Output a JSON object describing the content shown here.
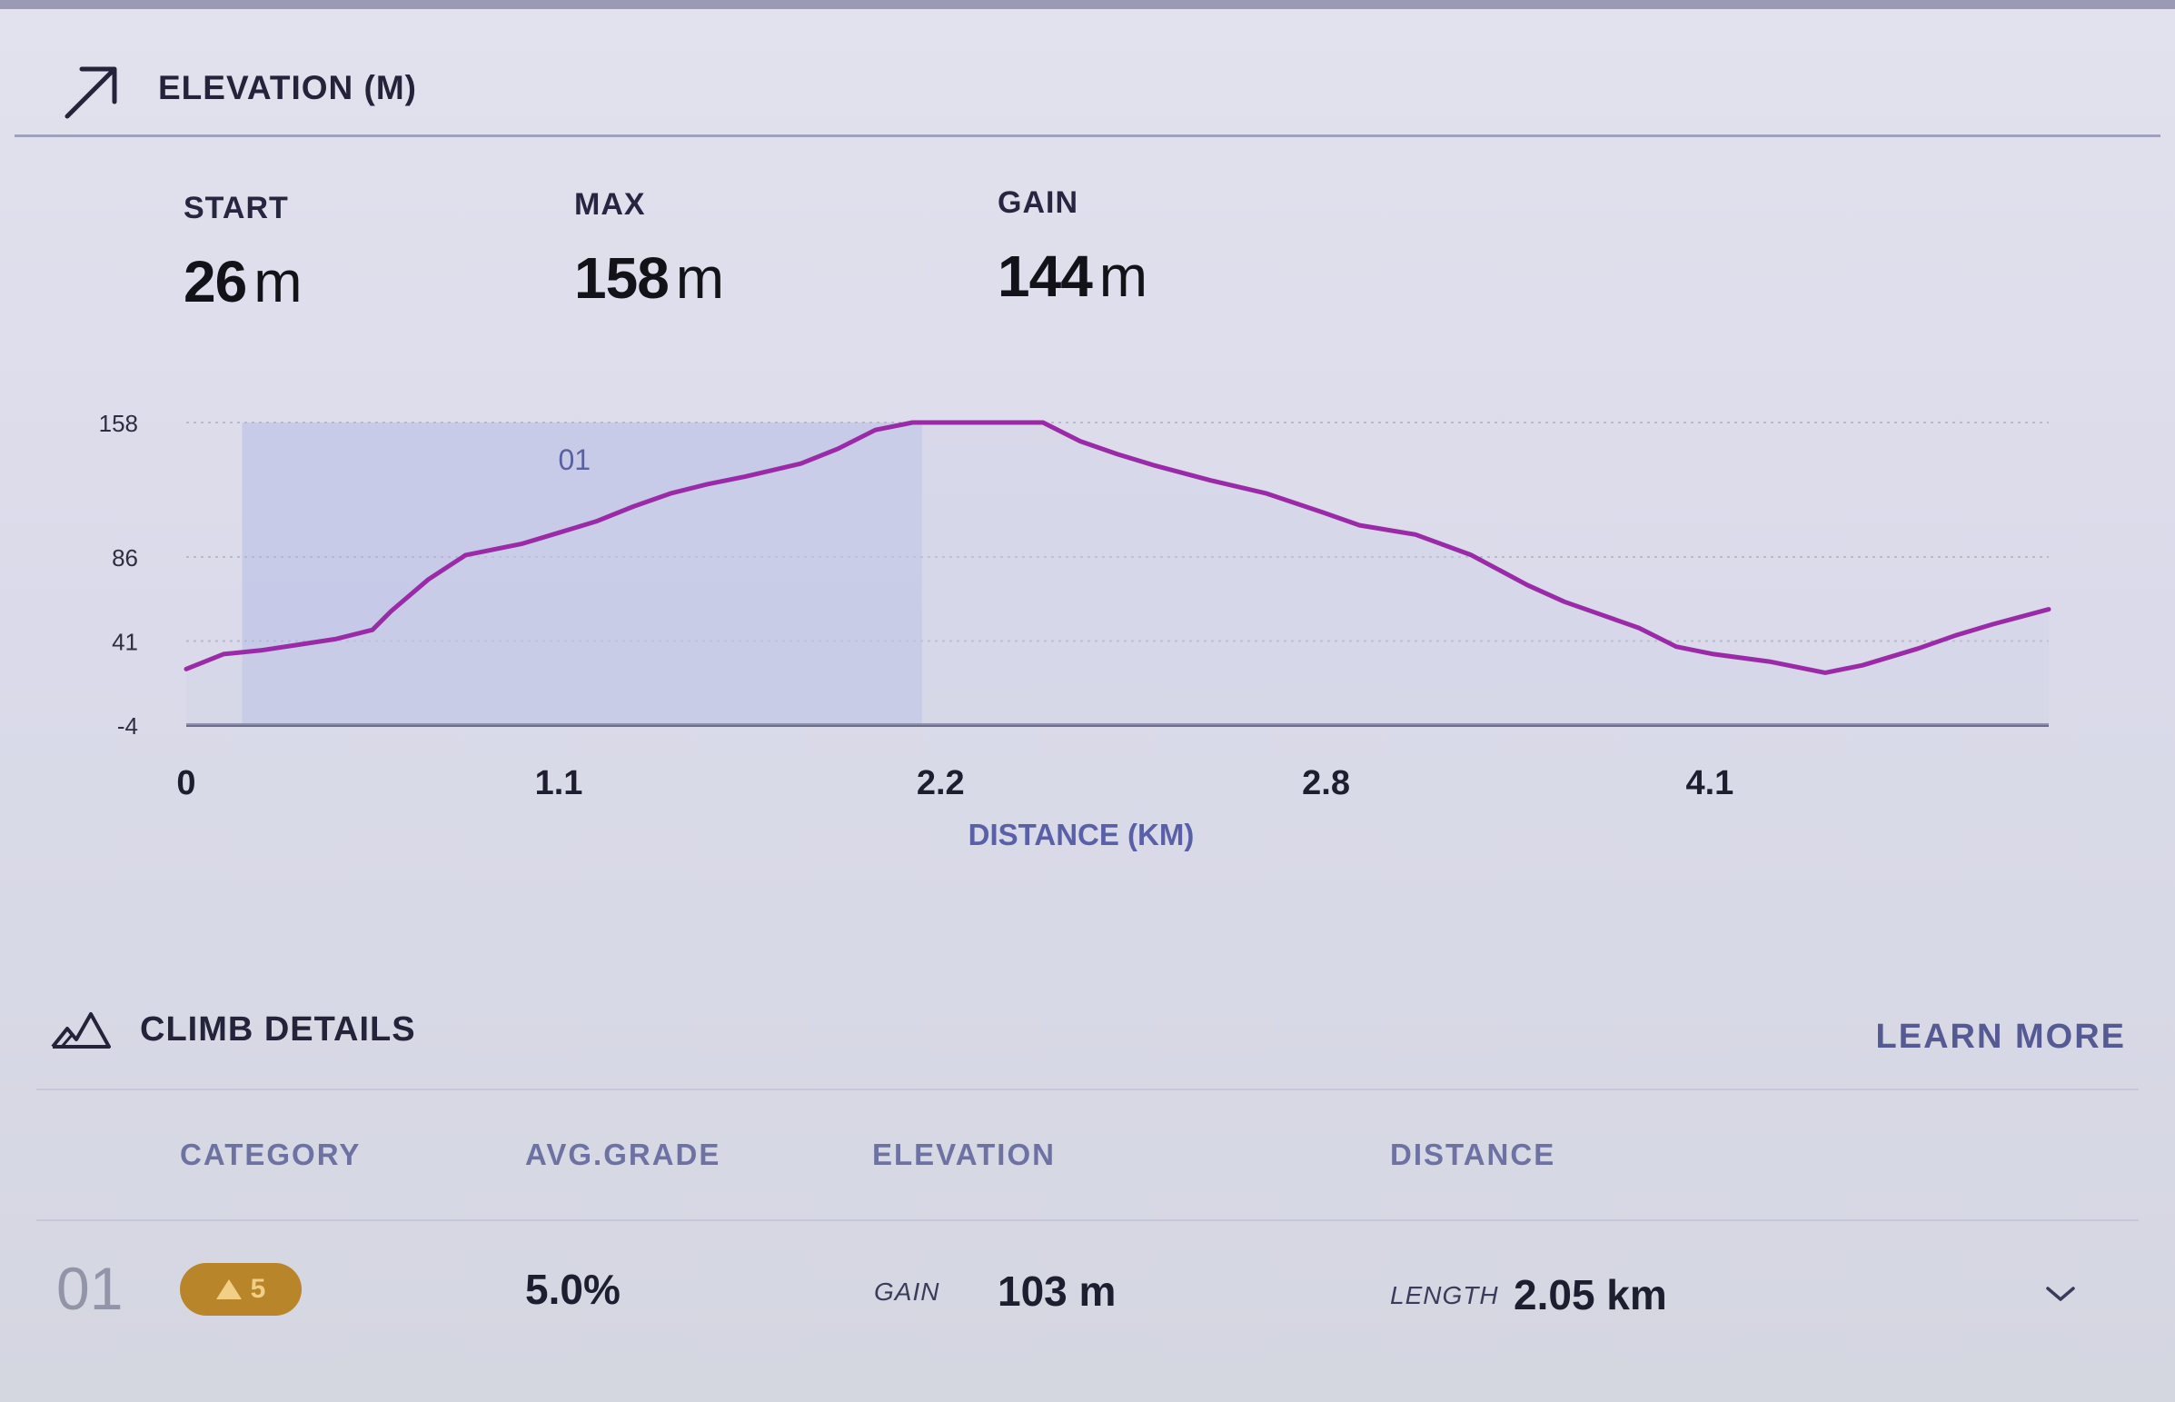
{
  "header": {
    "title": "ELEVATION (M)",
    "icon": "arrow-up-right-icon"
  },
  "stats": {
    "start": {
      "label": "START",
      "value": "26",
      "unit": "m"
    },
    "max": {
      "label": "MAX",
      "value": "158",
      "unit": "m"
    },
    "gain": {
      "label": "GAIN",
      "value": "144",
      "unit": "m"
    }
  },
  "chart_data": {
    "type": "area",
    "xlabel": "DISTANCE (KM)",
    "ylabel": "",
    "y_ticks": [
      "158",
      "86",
      "41",
      "-4"
    ],
    "x_ticks": [
      "0",
      "1.1",
      "2.2",
      "2.8",
      "4.1"
    ],
    "ylim": [
      -4,
      158
    ],
    "grid": true,
    "climb_segment": {
      "label": "01",
      "from_profile_fraction": 0.03,
      "to_profile_fraction": 0.395
    },
    "line_color": "#9a2aa8",
    "segment_color": "#b9c0e6",
    "profile_fraction": [
      0,
      0.02,
      0.04,
      0.06,
      0.08,
      0.1,
      0.11,
      0.13,
      0.15,
      0.18,
      0.2,
      0.22,
      0.24,
      0.26,
      0.28,
      0.3,
      0.33,
      0.35,
      0.37,
      0.39,
      0.41,
      0.43,
      0.46,
      0.48,
      0.5,
      0.52,
      0.55,
      0.58,
      0.61,
      0.63,
      0.66,
      0.69,
      0.72,
      0.74,
      0.76,
      0.78,
      0.8,
      0.82,
      0.85,
      0.88,
      0.9,
      0.93,
      0.95,
      0.97,
      1.0
    ],
    "elevation_m": [
      26,
      34,
      36,
      39,
      42,
      47,
      57,
      74,
      87,
      93,
      99,
      105,
      113,
      120,
      125,
      129,
      136,
      144,
      154,
      158,
      158,
      158,
      158,
      148,
      141,
      135,
      127,
      120,
      110,
      103,
      98,
      87,
      71,
      62,
      55,
      48,
      38,
      34,
      30,
      24,
      28,
      37,
      44,
      50,
      58
    ]
  },
  "climb": {
    "title": "CLIMB DETAILS",
    "icon": "mountain-outline-icon",
    "learn_more": "LEARN MORE",
    "columns": [
      "CATEGORY",
      "AVG.GRADE",
      "ELEVATION",
      "DISTANCE"
    ],
    "rows": [
      {
        "index": "01",
        "category": "5",
        "category_icon": "mountain-icon",
        "category_color": "#b8852a",
        "avg_grade": "5.0%",
        "gain_label": "GAIN",
        "gain": "103 m",
        "length_label": "LENGTH",
        "length": "2.05 km",
        "expand_icon": "chevron-down-icon"
      }
    ]
  }
}
